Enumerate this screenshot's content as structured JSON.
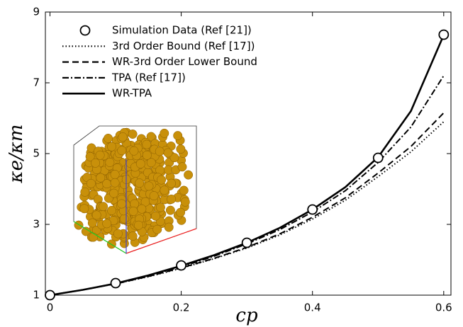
{
  "chart_data": {
    "type": "line",
    "x_label": "cp",
    "y_label": "κe/κm",
    "xlim": [
      -0.007,
      0.611
    ],
    "ylim": [
      1,
      9
    ],
    "xticks": [
      0,
      0.2,
      0.4,
      0.6
    ],
    "yticks": [
      1,
      3,
      5,
      7,
      9
    ],
    "legend": "upper left",
    "series": [
      {
        "name": "Simulation Data (Ref [21])",
        "color": "#000000",
        "marker": "circle",
        "linestyle": "none",
        "x": [
          0,
          0.1,
          0.2,
          0.3,
          0.4,
          0.5,
          0.6
        ],
        "values": [
          1.0,
          1.34,
          1.84,
          2.48,
          3.42,
          4.88,
          8.36
        ]
      },
      {
        "name": "3rd Order Bound (Ref [17])",
        "color": "#000000",
        "linestyle": "dotted",
        "x": [
          0,
          0.05,
          0.1,
          0.15,
          0.2,
          0.25,
          0.3,
          0.35,
          0.4,
          0.45,
          0.5,
          0.55,
          0.6
        ],
        "values": [
          1,
          1.15,
          1.32,
          1.52,
          1.76,
          2.03,
          2.33,
          2.7,
          3.15,
          3.68,
          4.35,
          5.05,
          5.9
        ]
      },
      {
        "name": "WR-3rd Order Lower Bound",
        "color": "#000000",
        "linestyle": "dashed",
        "x": [
          0,
          0.05,
          0.1,
          0.15,
          0.2,
          0.25,
          0.3,
          0.35,
          0.4,
          0.45,
          0.5,
          0.55,
          0.6
        ],
        "values": [
          1,
          1.15,
          1.32,
          1.53,
          1.77,
          2.04,
          2.35,
          2.73,
          3.2,
          3.75,
          4.45,
          5.2,
          6.15
        ]
      },
      {
        "name": "TPA (Ref [17])",
        "color": "#000000",
        "linestyle": "dashdot",
        "x": [
          0,
          0.05,
          0.1,
          0.15,
          0.2,
          0.25,
          0.3,
          0.35,
          0.4,
          0.45,
          0.5,
          0.55,
          0.6
        ],
        "values": [
          1,
          1.15,
          1.33,
          1.55,
          1.8,
          2.1,
          2.45,
          2.85,
          3.35,
          3.95,
          4.75,
          5.75,
          7.2
        ]
      },
      {
        "name": "WR-TPA",
        "color": "#000000",
        "linestyle": "solid",
        "x": [
          0,
          0.05,
          0.1,
          0.15,
          0.2,
          0.25,
          0.3,
          0.35,
          0.4,
          0.45,
          0.5,
          0.55,
          0.6
        ],
        "values": [
          1,
          1.15,
          1.33,
          1.56,
          1.83,
          2.13,
          2.48,
          2.9,
          3.42,
          4.05,
          4.9,
          6.2,
          8.35
        ]
      }
    ]
  }
}
